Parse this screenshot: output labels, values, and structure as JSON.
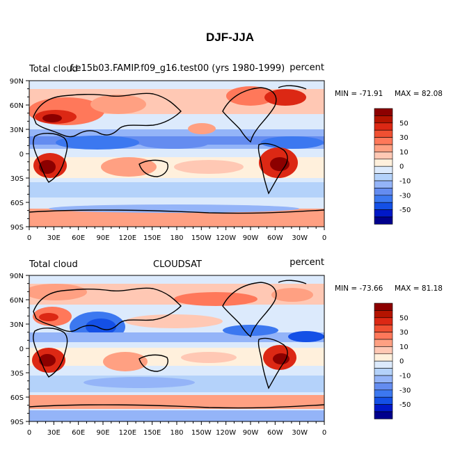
{
  "figure_title": "DJF-JJA",
  "colors": {
    "scale": [
      "#00008c",
      "#0018c8",
      "#1450e6",
      "#3c78f0",
      "#648cf0",
      "#94b4f8",
      "#b4d2fa",
      "#dceafc",
      "#fff0dc",
      "#ffc8b4",
      "#ffa082",
      "#ff785a",
      "#f05032",
      "#dc2814",
      "#b41400",
      "#8c0000"
    ]
  },
  "chart_data": [
    {
      "type": "heatmap",
      "title": "f.e15b03.FAMIP.f09_g16.test00 (yrs 1980-1999)",
      "left_label": "Total cloud",
      "right_label": "percent",
      "min_label": "MIN = -71.91",
      "max_label": "MAX =  82.08",
      "xticks": [
        "0",
        "30E",
        "60E",
        "90E",
        "120E",
        "150E",
        "180",
        "150W",
        "120W",
        "90W",
        "60W",
        "30W",
        "0"
      ],
      "yticks": [
        "90N",
        "60N",
        "30N",
        "0",
        "30S",
        "60S",
        "90S"
      ],
      "colorbar_ticks": [
        "50",
        "30",
        "10",
        "0",
        "-10",
        "-30",
        "-50"
      ],
      "xlim": [
        0,
        360
      ],
      "ylim": [
        -90,
        90
      ],
      "grid": false
    },
    {
      "type": "heatmap",
      "title": "CLOUDSAT",
      "left_label": "Total cloud",
      "right_label": "percent",
      "min_label": "MIN = -73.66",
      "max_label": "MAX =  81.18",
      "xticks": [
        "0",
        "30E",
        "60E",
        "90E",
        "120E",
        "150E",
        "180",
        "150W",
        "120W",
        "90W",
        "60W",
        "30W",
        "0"
      ],
      "yticks": [
        "90N",
        "60N",
        "30N",
        "0",
        "30S",
        "60S",
        "90S"
      ],
      "colorbar_ticks": [
        "50",
        "30",
        "10",
        "0",
        "-10",
        "-30",
        "-50"
      ],
      "xlim": [
        0,
        360
      ],
      "ylim": [
        -90,
        90
      ],
      "grid": false
    }
  ]
}
